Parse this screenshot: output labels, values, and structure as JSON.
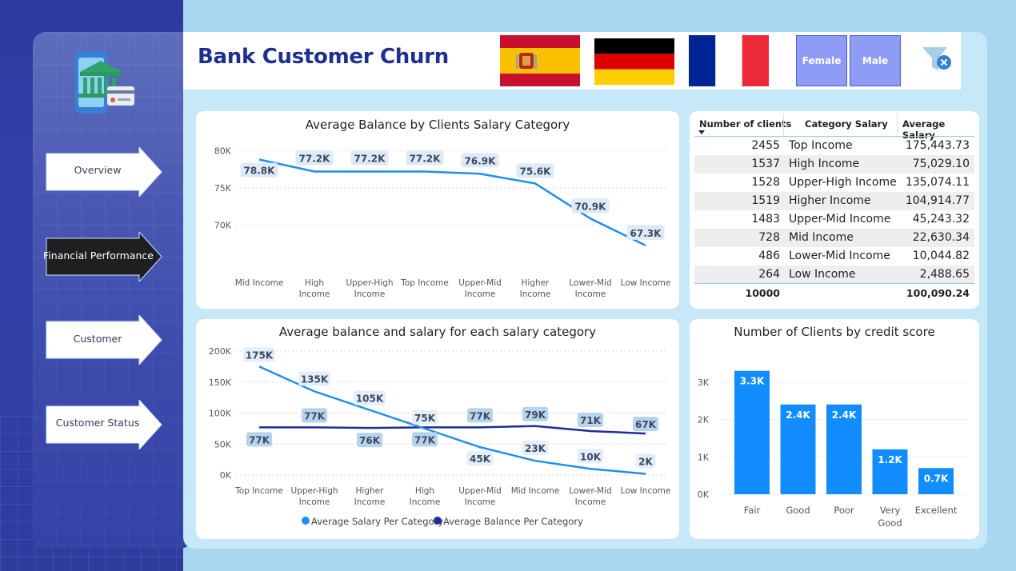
{
  "header": {
    "title": "Bank Customer Churn"
  },
  "flags": [
    "spain-flag",
    "germany-flag",
    "france-flag"
  ],
  "gender_buttons": {
    "female": "Female",
    "male": "Male"
  },
  "nav": {
    "overview": "Overview",
    "financial": "Financial Performance",
    "customer": "Customer",
    "status": "Customer Status"
  },
  "colors": {
    "navy": "#1e2f8f",
    "line_light": "#1f8fef",
    "line_dark": "#1f2d96",
    "bar": "#118dff"
  },
  "table": {
    "headers": [
      "Number of clients",
      "Category Salary",
      "Average Salary"
    ],
    "rows": [
      [
        "2455",
        "Top Income",
        "175,443.73"
      ],
      [
        "1537",
        "High Income",
        "75,029.10"
      ],
      [
        "1528",
        "Upper-High Income",
        "135,074.11"
      ],
      [
        "1519",
        "Higher Income",
        "104,914.77"
      ],
      [
        "1483",
        "Upper-Mid Income",
        "45,243.32"
      ],
      [
        "728",
        "Mid Income",
        "22,630.34"
      ],
      [
        "486",
        "Lower-Mid Income",
        "10,044.82"
      ],
      [
        "264",
        "Low Income",
        "2,488.65"
      ]
    ],
    "total": [
      "10000",
      "",
      "100,090.24"
    ]
  },
  "chart_data": [
    {
      "type": "line",
      "title": "Average Balance by Clients Salary Category",
      "categories": [
        "Mid Income",
        "High Income",
        "Upper-High Income",
        "Top Income",
        "Upper-Mid Income",
        "Higher Income",
        "Lower-Mid Income",
        "Low Income"
      ],
      "series": [
        {
          "values": [
            78.8,
            77.2,
            77.2,
            77.2,
            76.9,
            75.6,
            70.9,
            67.3
          ]
        }
      ],
      "data_labels": [
        "78.8K",
        "77.2K",
        "77.2K",
        "77.2K",
        "76.9K",
        "75.6K",
        "70.9K",
        "67.3K"
      ],
      "yticks": [
        "70K",
        "75K",
        "80K"
      ],
      "ylim": [
        66,
        81
      ],
      "grid": true
    },
    {
      "type": "line",
      "title": "Average balance and salary for each salary category",
      "categories": [
        "Top Income",
        "Upper-High Income",
        "Higher Income",
        "High Income",
        "Upper-Mid Income",
        "Mid Income",
        "Lower-Mid Income",
        "Low Income"
      ],
      "series": [
        {
          "name": "Average Salary Per Category",
          "values": [
            175,
            135,
            105,
            75,
            45,
            23,
            10,
            2
          ],
          "labels": [
            "175K",
            "135K",
            "105K",
            "75K",
            "45K",
            "23K",
            "10K",
            "2K"
          ]
        },
        {
          "name": "Average Balance Per Category",
          "values": [
            77,
            77,
            76,
            77,
            77,
            79,
            71,
            67
          ],
          "labels": [
            "77K",
            "77K",
            "76K",
            "77K",
            "77K",
            "79K",
            "71K",
            "67K"
          ]
        }
      ],
      "yticks": [
        "0K",
        "50K",
        "100K",
        "150K",
        "200K"
      ],
      "ylim": [
        0,
        200
      ],
      "legend": "bottom",
      "grid": true
    },
    {
      "type": "bar",
      "title": "Number of Clients by credit score",
      "categories": [
        "Fair",
        "Good",
        "Poor",
        "Very Good",
        "Excellent"
      ],
      "values": [
        3.3,
        2.4,
        2.4,
        1.2,
        0.7
      ],
      "data_labels": [
        "3.3K",
        "2.4K",
        "2.4K",
        "1.2K",
        "0.7K"
      ],
      "yticks": [
        "0K",
        "1K",
        "2K",
        "3K"
      ],
      "ylim": [
        0,
        3.5
      ],
      "grid": true
    }
  ]
}
